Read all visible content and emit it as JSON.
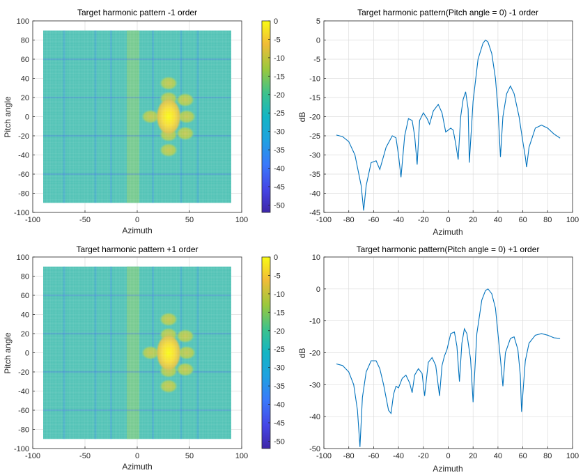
{
  "chart_data": [
    {
      "type": "heatmap",
      "title": "Target harmonic pattern    -1 order",
      "xlabel": "Azimuth",
      "ylabel": "Pitch angle",
      "xlim": [
        -100,
        100
      ],
      "ylim": [
        -100,
        100
      ],
      "xticks": [
        "-100",
        "-50",
        "0",
        "50",
        "100"
      ],
      "yticks": [
        "100",
        "80",
        "60",
        "40",
        "20",
        "0",
        "-20",
        "-40",
        "-60",
        "-80",
        "-100"
      ],
      "data_extent": {
        "azimuth": [
          -90,
          90
        ],
        "pitch": [
          -90,
          90
        ]
      },
      "main_lobe": {
        "azimuth": 30,
        "pitch": 0,
        "level_db": 0
      },
      "colorbar": {
        "min": -52,
        "max": 0,
        "ticks": [
          "0",
          "-5",
          "-10",
          "-15",
          "-20",
          "-25",
          "-30",
          "-35",
          "-40",
          "-45",
          "-50"
        ]
      },
      "colormap": "parula",
      "grid": true
    },
    {
      "type": "line",
      "title": "Target harmonic pattern(Pitch angle = 0)  -1 order",
      "xlabel": "Azimuth",
      "ylabel": "dB",
      "xlim": [
        -100,
        100
      ],
      "ylim": [
        -45,
        5
      ],
      "xticks": [
        "-100",
        "-80",
        "-60",
        "-40",
        "-20",
        "0",
        "20",
        "40",
        "60",
        "80",
        "100"
      ],
      "yticks": [
        "5",
        "0",
        "-5",
        "-10",
        "-15",
        "-20",
        "-25",
        "-30",
        "-35",
        "-40",
        "-45"
      ],
      "x": [
        -90,
        -85,
        -80,
        -75,
        -70,
        -68,
        -66,
        -62,
        -58,
        -55,
        -50,
        -45,
        -42,
        -40,
        -38,
        -35,
        -32,
        -29,
        -27,
        -25,
        -23,
        -20,
        -17,
        -15,
        -12,
        -8,
        -5,
        -2,
        0,
        2,
        4,
        6,
        8,
        10,
        12,
        14,
        16,
        17,
        20,
        24,
        28,
        30,
        32,
        35,
        38,
        40,
        42,
        44,
        47,
        50,
        53,
        57,
        60,
        62,
        63,
        65,
        70,
        75,
        80,
        85,
        90
      ],
      "y": [
        -24.8,
        -25.2,
        -26.5,
        -30,
        -38,
        -44.5,
        -38,
        -32,
        -31.5,
        -33.8,
        -28,
        -25,
        -25.5,
        -30,
        -35.8,
        -25,
        -20.5,
        -21,
        -25,
        -32.5,
        -21,
        -19,
        -20.5,
        -22,
        -18.5,
        -16.8,
        -19,
        -24,
        -23.5,
        -23,
        -23.5,
        -27,
        -31.2,
        -20,
        -15.5,
        -13.5,
        -18,
        -32,
        -16,
        -5,
        -0.8,
        0,
        -0.5,
        -3.5,
        -10,
        -18,
        -30.5,
        -20,
        -14,
        -12,
        -14,
        -20,
        -26.5,
        -30.5,
        -33.2,
        -28,
        -23,
        -22.2,
        -23,
        -24.5,
        -25.6
      ],
      "grid": true
    },
    {
      "type": "heatmap",
      "title": "Target harmonic pattern    +1 order",
      "xlabel": "Azimuth",
      "ylabel": "Pitch angle",
      "xlim": [
        -100,
        100
      ],
      "ylim": [
        -100,
        100
      ],
      "xticks": [
        "-100",
        "-50",
        "0",
        "50",
        "100"
      ],
      "yticks": [
        "100",
        "80",
        "60",
        "40",
        "20",
        "0",
        "-20",
        "-40",
        "-60",
        "-80",
        "-100"
      ],
      "data_extent": {
        "azimuth": [
          -90,
          90
        ],
        "pitch": [
          -90,
          90
        ]
      },
      "main_lobe": {
        "azimuth": 30,
        "pitch": 0,
        "level_db": 0
      },
      "colorbar": {
        "min": -52,
        "max": 0,
        "ticks": [
          "0",
          "-5",
          "-10",
          "-15",
          "-20",
          "-25",
          "-30",
          "-35",
          "-40",
          "-45",
          "-50"
        ]
      },
      "colormap": "parula",
      "grid": true
    },
    {
      "type": "line",
      "title": "Target harmonic pattern(Pitch angle = 0)  +1 order",
      "xlabel": "Azimuth",
      "ylabel": "dB",
      "xlim": [
        -100,
        100
      ],
      "ylim": [
        -50,
        10
      ],
      "xticks": [
        "-100",
        "-80",
        "-60",
        "-40",
        "-20",
        "0",
        "20",
        "40",
        "60",
        "80",
        "100"
      ],
      "yticks": [
        "10",
        "0",
        "-10",
        "-20",
        "-30",
        "-40",
        "-50"
      ],
      "x": [
        -90,
        -85,
        -80,
        -76,
        -73,
        -71,
        -69,
        -66,
        -62,
        -58,
        -55,
        -52,
        -48,
        -46,
        -44,
        -42,
        -40,
        -37,
        -34,
        -31,
        -29,
        -27,
        -24,
        -21,
        -19,
        -16,
        -13,
        -10,
        -7,
        -5,
        -3,
        -1,
        2,
        5,
        7,
        9,
        11,
        13,
        15,
        18,
        20,
        23,
        27,
        30,
        32,
        35,
        38,
        42,
        44,
        46,
        50,
        53,
        56,
        58,
        59,
        60,
        62,
        65,
        70,
        75,
        80,
        85,
        90
      ],
      "y": [
        -23.5,
        -24,
        -26,
        -30,
        -38,
        -49.5,
        -34,
        -26,
        -22.5,
        -22.5,
        -25,
        -30,
        -38,
        -39,
        -33,
        -30.5,
        -31,
        -28,
        -27,
        -29.5,
        -32.5,
        -27,
        -25,
        -26.5,
        -33.5,
        -23,
        -21.5,
        -24,
        -33.5,
        -24,
        -21,
        -19,
        -14,
        -13.5,
        -18,
        -29,
        -17,
        -12.5,
        -14,
        -22,
        -35.5,
        -14,
        -3.5,
        -0.5,
        0,
        -1.5,
        -6,
        -22,
        -30.5,
        -20,
        -15.5,
        -15,
        -19,
        -27,
        -38.5,
        -33,
        -22.5,
        -17,
        -14.5,
        -14,
        -14.5,
        -15.3,
        -15.5
      ],
      "grid": true
    }
  ]
}
